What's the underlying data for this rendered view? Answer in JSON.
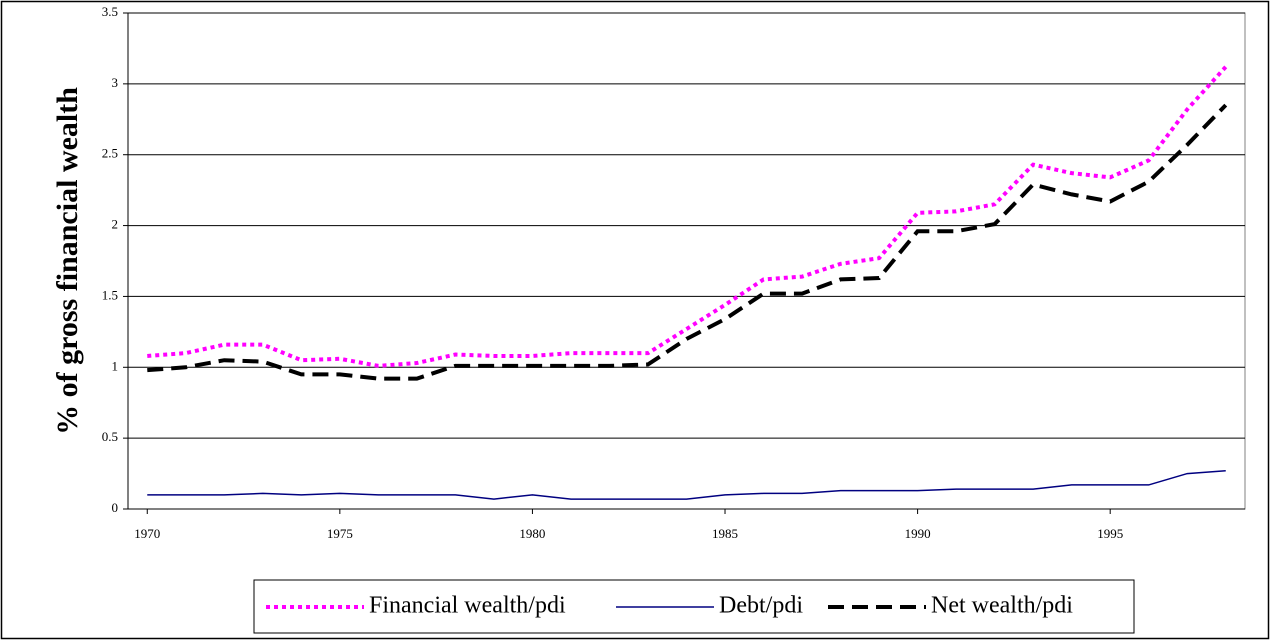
{
  "chart_data": {
    "type": "line",
    "ylabel": "% of gross financial wealth",
    "x": [
      1970,
      1971,
      1972,
      1973,
      1974,
      1975,
      1976,
      1977,
      1978,
      1979,
      1980,
      1981,
      1982,
      1983,
      1984,
      1985,
      1986,
      1987,
      1988,
      1989,
      1990,
      1991,
      1992,
      1993,
      1994,
      1995,
      1996,
      1997,
      1998
    ],
    "xlim": [
      1969.5,
      1998.5
    ],
    "xticks": [
      1970,
      1975,
      1980,
      1985,
      1990,
      1995
    ],
    "ylim": [
      0,
      3.5
    ],
    "yticks": [
      0,
      0.5,
      1,
      1.5,
      2,
      2.5,
      3,
      3.5
    ],
    "grid": true,
    "legend": "bottom",
    "series": [
      {
        "name": "Financial wealth/pdi",
        "color": "#ff00ff",
        "style": "dotted",
        "values": [
          1.08,
          1.1,
          1.16,
          1.16,
          1.05,
          1.06,
          1.01,
          1.03,
          1.09,
          1.08,
          1.08,
          1.1,
          1.1,
          1.1,
          1.27,
          1.44,
          1.62,
          1.64,
          1.73,
          1.77,
          2.09,
          2.1,
          2.15,
          2.43,
          2.37,
          2.34,
          2.46,
          2.82,
          3.12
        ]
      },
      {
        "name": "Debt/pdi",
        "color": "#000080",
        "style": "solid",
        "values": [
          0.1,
          0.1,
          0.1,
          0.11,
          0.1,
          0.11,
          0.1,
          0.1,
          0.1,
          0.07,
          0.1,
          0.07,
          0.07,
          0.07,
          0.07,
          0.1,
          0.11,
          0.11,
          0.13,
          0.13,
          0.13,
          0.14,
          0.14,
          0.14,
          0.17,
          0.17,
          0.17,
          0.25,
          0.27
        ]
      },
      {
        "name": "Net wealth/pdi",
        "color": "#000000",
        "style": "dashed",
        "values": [
          0.98,
          1.0,
          1.05,
          1.04,
          0.95,
          0.95,
          0.92,
          0.92,
          1.01,
          1.01,
          1.01,
          1.01,
          1.01,
          1.02,
          1.2,
          1.34,
          1.52,
          1.52,
          1.62,
          1.63,
          1.96,
          1.96,
          2.01,
          2.29,
          2.22,
          2.17,
          2.31,
          2.57,
          2.85
        ]
      }
    ]
  }
}
